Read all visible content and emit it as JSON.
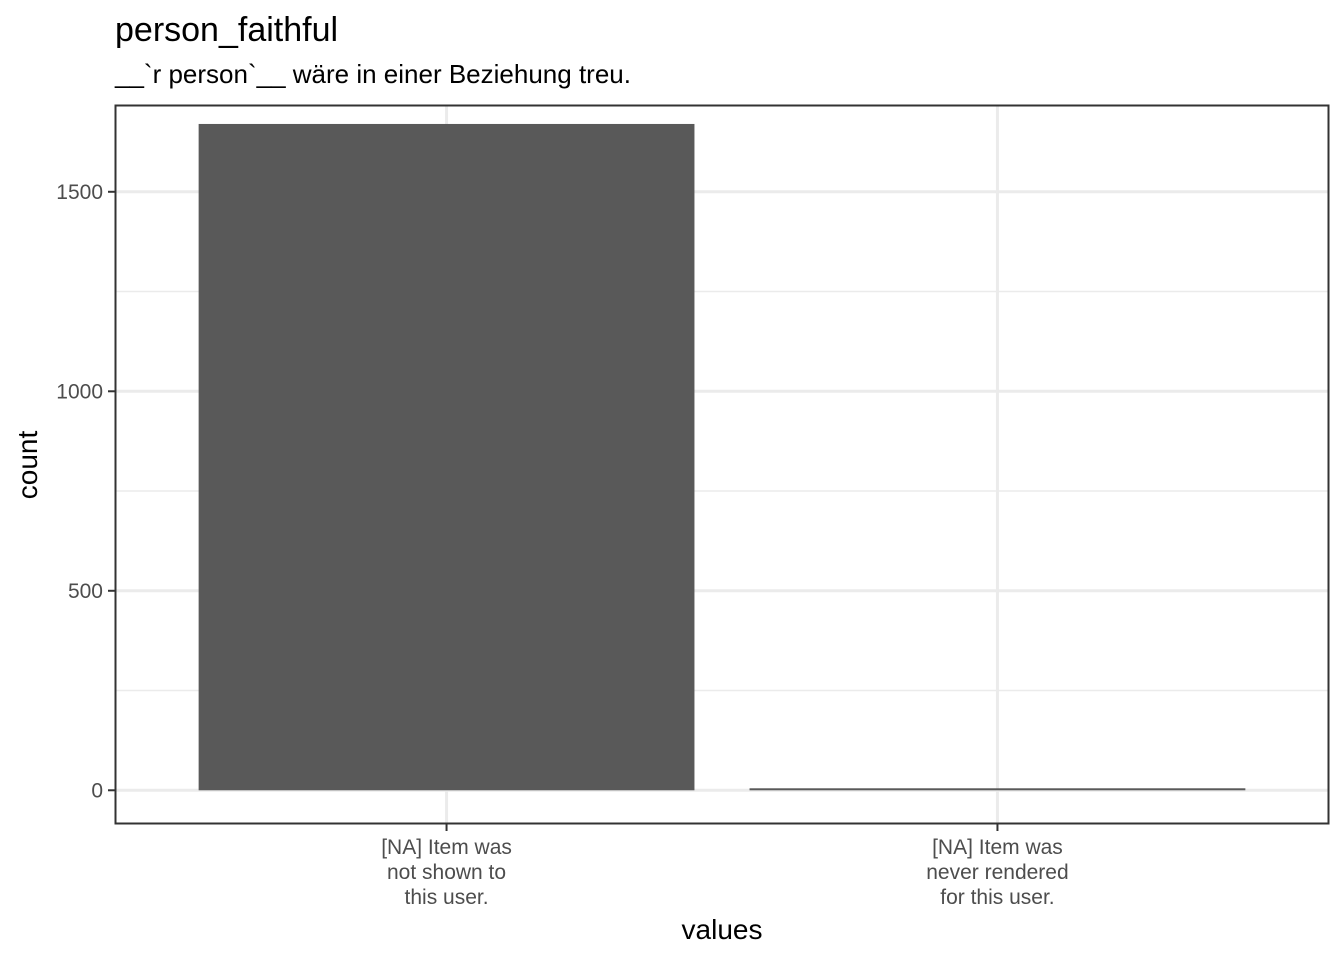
{
  "chart_data": {
    "type": "bar",
    "title": "person_faithful",
    "subtitle": "__`r person`__ wäre in einer Beziehung treu.",
    "xlabel": "values",
    "ylabel": "count",
    "categories": [
      "[NA] Item was not shown to this user.",
      "[NA] Item was never rendered for this user."
    ],
    "category_lines": [
      [
        "[NA] Item was",
        "not shown to",
        "this user."
      ],
      [
        "[NA] Item was",
        "never rendered",
        "for this user."
      ]
    ],
    "values": [
      1670,
      5
    ],
    "ylim": [
      -82,
      1715
    ],
    "yticks": [
      0,
      500,
      1000,
      1500
    ],
    "ytick_labels": [
      "0",
      "500",
      "1000",
      "1500"
    ],
    "grid": true,
    "colors": {
      "bar": "#595959",
      "grid": "#ebebeb",
      "panel_border": "#333333",
      "tick_text": "#4d4d4d"
    }
  }
}
